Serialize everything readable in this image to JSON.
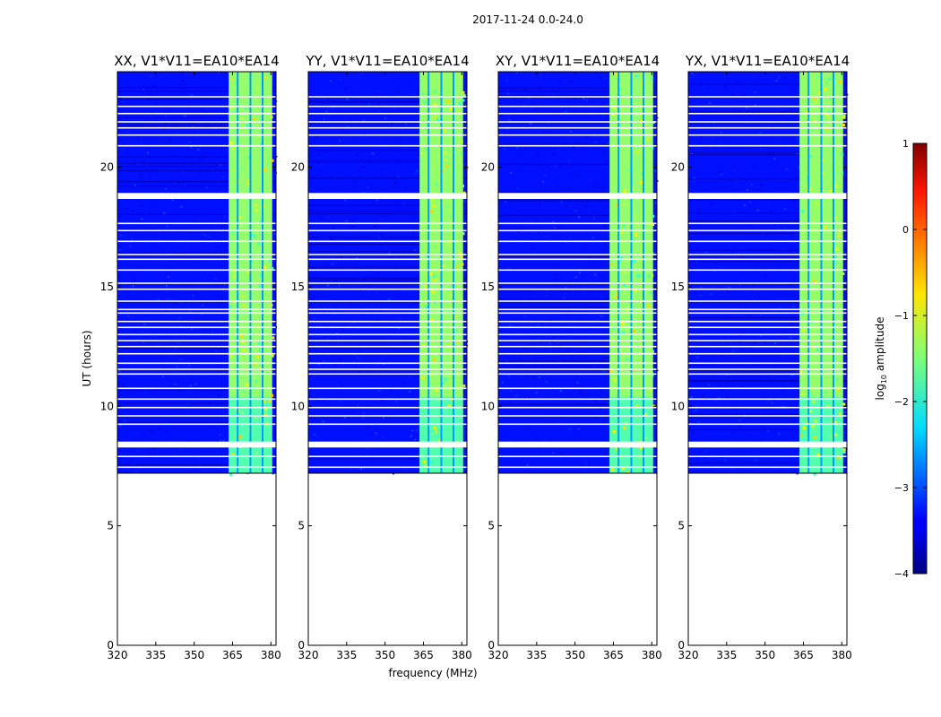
{
  "suptitle": "2017-11-24 0.0-24.0",
  "xlabel": "frequency (MHz)",
  "ylabel": "UT (hours)",
  "chart_data": {
    "type": "heatmap",
    "xlim": [
      320,
      382
    ],
    "ylim": [
      0,
      24
    ],
    "xticks": [
      320,
      335,
      350,
      365,
      380
    ],
    "yticks": [
      0,
      5,
      10,
      15,
      20
    ],
    "data_start_hour": 7.2,
    "data_end_hour": 24.0,
    "rfi_band_mhz": [
      363.5,
      380.5
    ],
    "rfi_channel_centers_mhz": [
      364.5,
      369.5,
      374.5,
      379.0
    ],
    "gap_hours": [
      7.45,
      7.9,
      8.35,
      8.45,
      9.25,
      9.6,
      9.95,
      10.3,
      10.75,
      11.35,
      11.55,
      11.8,
      12.2,
      12.5,
      12.75,
      13.0,
      13.3,
      13.55,
      13.9,
      14.05,
      14.4,
      14.9,
      15.15,
      15.7,
      16.15,
      16.35,
      16.9,
      17.35,
      17.65,
      18.75,
      18.85,
      20.9,
      21.35,
      21.65,
      21.9,
      22.25,
      22.55,
      22.95
    ],
    "panels": [
      {
        "title": "XX, V1*V11=EA10*EA14",
        "pol": "XX"
      },
      {
        "title": "YY, V1*V11=EA10*EA14",
        "pol": "YY"
      },
      {
        "title": "XY, V1*V11=EA10*EA14",
        "pol": "XY"
      },
      {
        "title": "YX, V1*V11=EA10*EA14",
        "pol": "YX"
      }
    ],
    "colorbar": {
      "label": "log",
      "label_sub": "10",
      "label_rest": " amplitude",
      "min": -4,
      "max": 1,
      "ticks": [
        1,
        0,
        -1,
        -2,
        -3,
        -4
      ],
      "tick_labels": [
        "1",
        "0",
        "−1",
        "−2",
        "−3",
        "−4"
      ],
      "colormap": "jet",
      "background_level": -3.3,
      "rfi_level": -1.4
    }
  }
}
